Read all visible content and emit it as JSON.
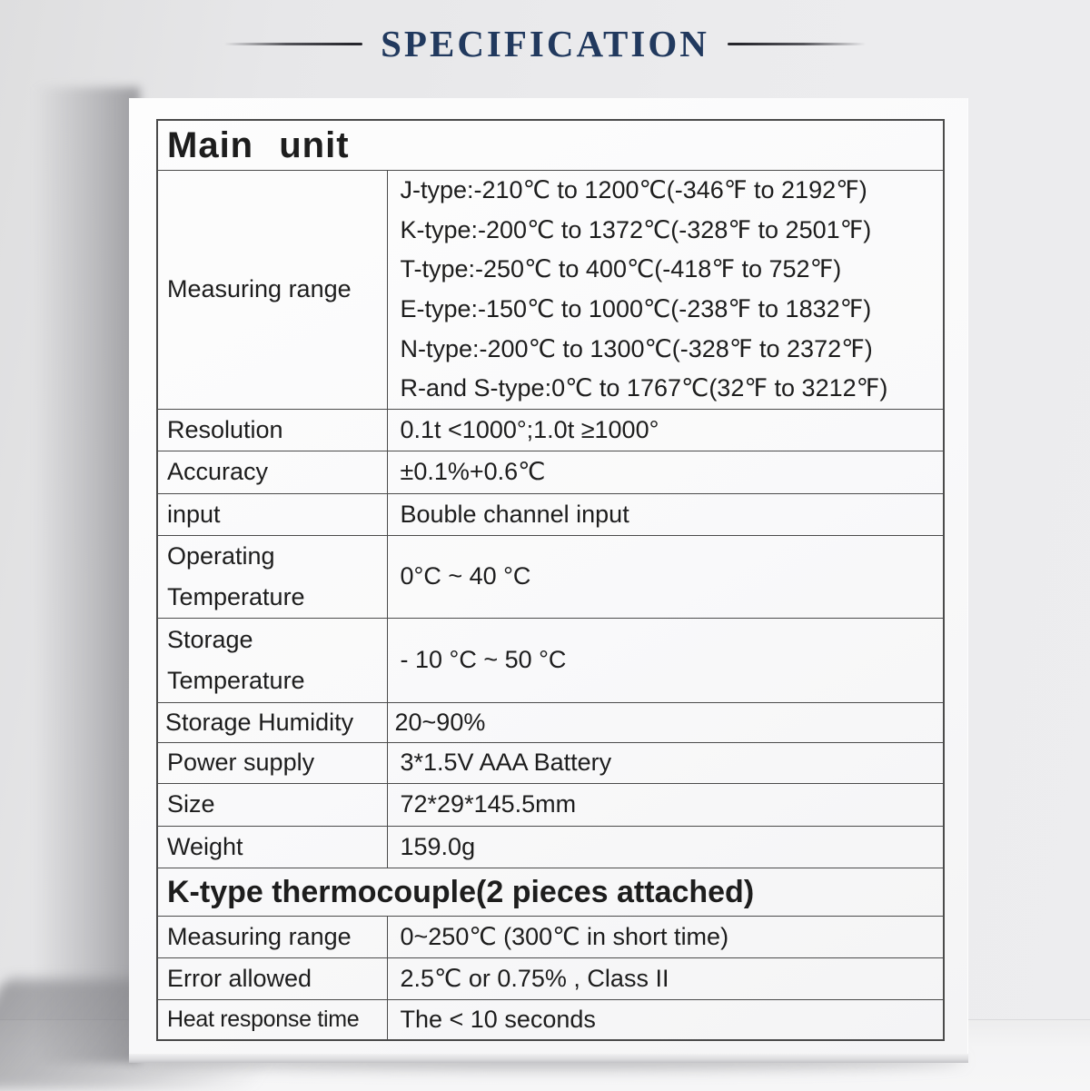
{
  "header": {
    "title": "SPECIFICATION"
  },
  "colors": {
    "title_navy": "#21395e",
    "table_border": "#4b4b4b",
    "wall": "#e9e9eb",
    "board": "#f9f9fa"
  },
  "sections": [
    {
      "header": "Main unit",
      "rows": [
        {
          "label": "Measuring range",
          "lines": [
            "J-type:-210℃ to 1200℃(-346℉ to 2192℉)",
            "K-type:-200℃ to 1372℃(-328℉ to 2501℉)",
            "T-type:-250℃ to 400℃(-418℉ to 752℉)",
            "E-type:-150℃ to 1000℃(-238℉ to 1832℉)",
            "N-type:-200℃ to 1300℃(-328℉ to 2372℉)",
            "R-and S-type:0℃ to 1767℃(32℉ to 3212℉)"
          ]
        },
        {
          "label": "Resolution",
          "value": "0.1t <1000°;1.0t ≥1000°"
        },
        {
          "label": "Accuracy",
          "value": "±0.1%+0.6℃"
        },
        {
          "label": "input",
          "value": "Bouble channel input"
        },
        {
          "label": "Operating Temperature",
          "value": "0°C ~ 40 °C"
        },
        {
          "label": "Storage Temperature",
          "value": "- 10 °C ~ 50 °C"
        },
        {
          "label": "Storage Humidity",
          "value": "20~90%"
        },
        {
          "label": "Power supply",
          "value": "3*1.5V AAA Battery"
        },
        {
          "label": "Size",
          "value": "72*29*145.5mm"
        },
        {
          "label": "Weight",
          "value": "159.0g"
        }
      ]
    },
    {
      "header": "K-type thermocouple(2 pieces attached)",
      "rows": [
        {
          "label": "Measuring range",
          "value": "0~250℃ (300℃ in short time)"
        },
        {
          "label": "Error allowed",
          "value": "2.5℃ or 0.75% , Class II"
        },
        {
          "label": "Heat response time",
          "value": "The < 10 seconds"
        }
      ]
    }
  ]
}
